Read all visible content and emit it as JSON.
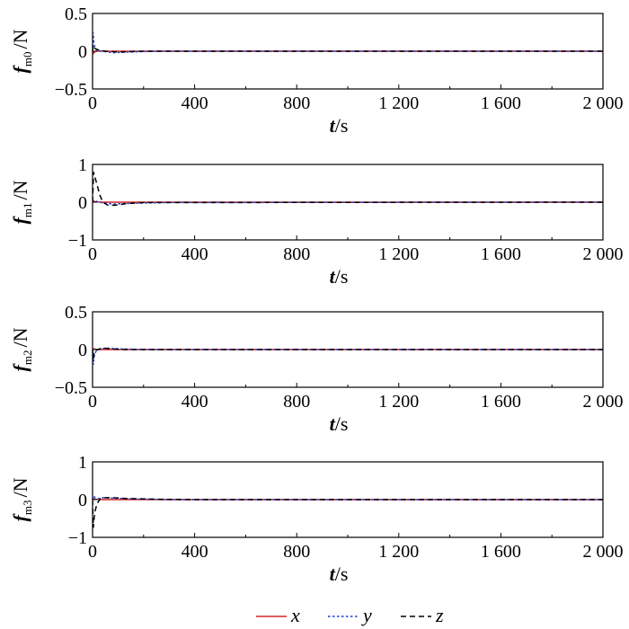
{
  "chart_data": [
    {
      "type": "line",
      "ylabel": {
        "symbol": "f",
        "subscript": "m0",
        "unit": "/N"
      },
      "xlabel": {
        "symbol": "t",
        "unit": "/s"
      },
      "xlim": [
        0,
        2000
      ],
      "ylim": [
        -0.5,
        0.5
      ],
      "xticks": [
        0,
        400,
        800,
        1200,
        1600,
        2000
      ],
      "xtick_labels": [
        "0",
        "400",
        "800",
        "1 200",
        "1 600",
        "2 000"
      ],
      "yticks": [
        -0.5,
        0,
        0.5
      ],
      "ytick_labels": [
        "−0.5",
        "0",
        "0.5"
      ],
      "series": [
        {
          "name": "x",
          "x": [
            0,
            3,
            8,
            15,
            30,
            60,
            2000
          ],
          "values": [
            0.0,
            -0.03,
            -0.01,
            0.0,
            0.0,
            0.0,
            0.0
          ]
        },
        {
          "name": "y",
          "x": [
            0,
            2,
            5,
            10,
            20,
            40,
            80,
            150,
            250,
            2000
          ],
          "values": [
            0.0,
            0.25,
            0.12,
            0.04,
            0.01,
            0.0,
            -0.02,
            -0.01,
            0.0,
            0.0
          ]
        },
        {
          "name": "z",
          "x": [
            0,
            3,
            6,
            12,
            25,
            50,
            100,
            200,
            2000
          ],
          "values": [
            0.0,
            0.08,
            0.05,
            0.03,
            0.015,
            0.0,
            -0.01,
            0.0,
            0.0
          ]
        }
      ]
    },
    {
      "type": "line",
      "ylabel": {
        "symbol": "f",
        "subscript": "m1",
        "unit": "/N"
      },
      "xlabel": {
        "symbol": "t",
        "unit": "/s"
      },
      "xlim": [
        0,
        2000
      ],
      "ylim": [
        -1,
        1
      ],
      "xticks": [
        0,
        400,
        800,
        1200,
        1600,
        2000
      ],
      "xtick_labels": [
        "0",
        "400",
        "800",
        "1 200",
        "1 600",
        "2 000"
      ],
      "yticks": [
        -1,
        0,
        1
      ],
      "ytick_labels": [
        "−1",
        "0",
        "1"
      ],
      "series": [
        {
          "name": "x",
          "x": [
            0,
            5,
            15,
            40,
            2000
          ],
          "values": [
            0.0,
            0.02,
            0.01,
            0.0,
            0.0
          ]
        },
        {
          "name": "y",
          "x": [
            0,
            5,
            15,
            40,
            80,
            150,
            300,
            2000
          ],
          "values": [
            0.0,
            0.05,
            0.02,
            -0.02,
            -0.05,
            -0.03,
            -0.01,
            0.0
          ]
        },
        {
          "name": "z",
          "x": [
            0,
            4,
            10,
            18,
            28,
            40,
            60,
            90,
            130,
            200,
            2000
          ],
          "values": [
            0.0,
            0.8,
            0.65,
            0.45,
            0.2,
            0.0,
            -0.08,
            -0.08,
            -0.04,
            -0.01,
            0.0
          ]
        }
      ]
    },
    {
      "type": "line",
      "ylabel": {
        "symbol": "f",
        "subscript": "m2",
        "unit": "/N"
      },
      "xlabel": {
        "symbol": "t",
        "unit": "/s"
      },
      "xlim": [
        0,
        2000
      ],
      "ylim": [
        -0.5,
        0.5
      ],
      "xticks": [
        0,
        400,
        800,
        1200,
        1600,
        2000
      ],
      "xtick_labels": [
        "0",
        "400",
        "800",
        "1 200",
        "1 600",
        "2 000"
      ],
      "yticks": [
        -0.5,
        0,
        0.5
      ],
      "ytick_labels": [
        "−0.5",
        "0",
        "0.5"
      ],
      "series": [
        {
          "name": "x",
          "x": [
            0,
            4,
            10,
            25,
            2000
          ],
          "values": [
            0.0,
            0.01,
            0.005,
            0.0,
            0.0
          ]
        },
        {
          "name": "y",
          "x": [
            0,
            3,
            6,
            12,
            25,
            50,
            100,
            200,
            2000
          ],
          "values": [
            0.0,
            -0.2,
            -0.1,
            -0.03,
            0.0,
            0.02,
            0.01,
            0.0,
            0.0
          ]
        },
        {
          "name": "z",
          "x": [
            0,
            3,
            6,
            10,
            20,
            40,
            70,
            120,
            2000
          ],
          "values": [
            0.0,
            -0.12,
            -0.06,
            -0.02,
            0.0,
            0.02,
            0.01,
            0.0,
            0.0
          ]
        }
      ]
    },
    {
      "type": "line",
      "ylabel": {
        "symbol": "f",
        "subscript": "m3",
        "unit": "/N"
      },
      "xlabel": {
        "symbol": "t",
        "unit": "/s"
      },
      "xlim": [
        0,
        2000
      ],
      "ylim": [
        -1,
        1
      ],
      "xticks": [
        0,
        400,
        800,
        1200,
        1600,
        2000
      ],
      "xtick_labels": [
        "0",
        "400",
        "800",
        "1 200",
        "1 600",
        "2 000"
      ],
      "yticks": [
        -1,
        0,
        1
      ],
      "ytick_labels": [
        "−1",
        "0",
        "1"
      ],
      "series": [
        {
          "name": "x",
          "x": [
            0,
            5,
            15,
            40,
            2000
          ],
          "values": [
            0.0,
            0.02,
            0.01,
            0.0,
            0.0
          ]
        },
        {
          "name": "y",
          "x": [
            0,
            4,
            10,
            20,
            40,
            80,
            150,
            300,
            2000
          ],
          "values": [
            0.0,
            0.1,
            0.05,
            0.02,
            0.05,
            0.04,
            0.02,
            0.0,
            0.0
          ]
        },
        {
          "name": "z",
          "x": [
            0,
            3,
            6,
            10,
            18,
            30,
            50,
            80,
            130,
            250,
            400,
            2000
          ],
          "values": [
            0.0,
            -0.75,
            -0.5,
            -0.3,
            -0.1,
            0.02,
            0.05,
            0.05,
            0.03,
            0.01,
            0.0,
            0.0
          ]
        }
      ]
    }
  ],
  "legend": {
    "placement": "bottom-center",
    "entries": [
      {
        "name": "x",
        "color": "#d62728",
        "style": "solid"
      },
      {
        "name": "y",
        "color": "#1f3fd6",
        "style": "dotted"
      },
      {
        "name": "z",
        "color": "#000000",
        "style": "dashed"
      }
    ]
  },
  "colors": {
    "x": "#d62728",
    "y": "#1f3fd6",
    "z": "#000000"
  }
}
